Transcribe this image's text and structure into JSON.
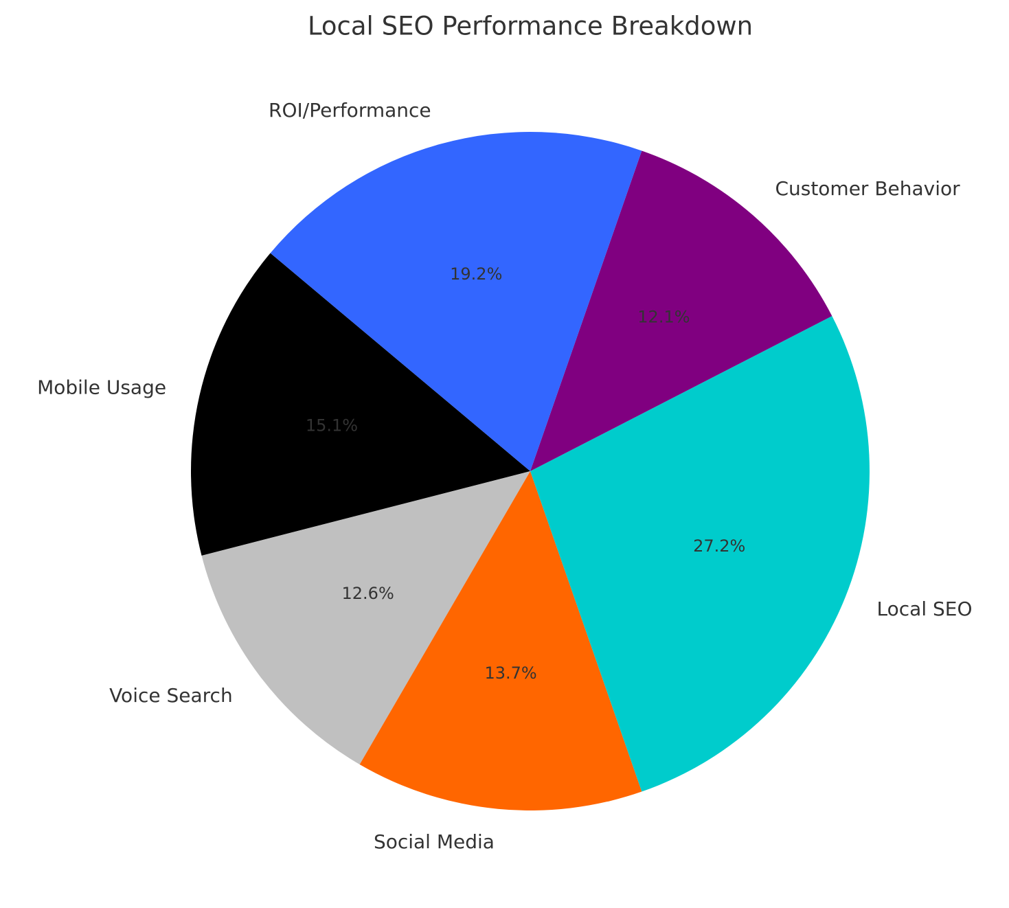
{
  "chart_data": {
    "type": "pie",
    "title": "Local SEO Performance Breakdown",
    "categories": [
      "Mobile Usage",
      "Voice Search",
      "Social Media",
      "Local SEO",
      "Customer Behavior",
      "ROI/Performance"
    ],
    "values": [
      15.1,
      12.6,
      13.7,
      27.2,
      12.1,
      19.2
    ],
    "value_labels": [
      "15.1%",
      "12.6%",
      "13.7%",
      "27.2%",
      "12.1%",
      "19.2%"
    ],
    "colors": [
      "#000000",
      "#c0c0c0",
      "#ff6600",
      "#00cccc",
      "#800080",
      "#3366ff"
    ]
  }
}
